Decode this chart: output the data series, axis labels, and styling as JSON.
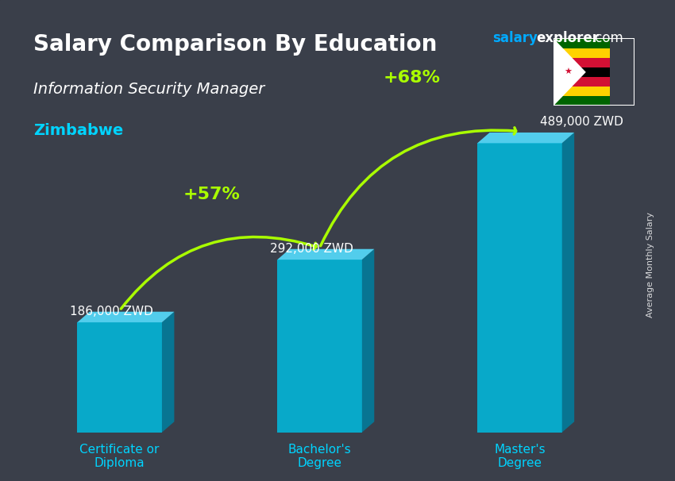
{
  "title": "Salary Comparison By Education",
  "subtitle": "Information Security Manager",
  "country": "Zimbabwe",
  "watermark": "salaryexplorer.com",
  "ylabel": "Average Monthly Salary",
  "categories": [
    "Certificate or\nDiploma",
    "Bachelor's\nDegree",
    "Master's\nDegree"
  ],
  "values": [
    186000,
    292000,
    489000
  ],
  "value_labels": [
    "186,000 ZWD",
    "292,000 ZWD",
    "489,000 ZWD"
  ],
  "pct_labels": [
    "+57%",
    "+68%"
  ],
  "bar_color_top": "#00c8f0",
  "bar_color_side": "#0099bb",
  "bar_color_face": "#00b0d8",
  "bg_color": "#1a1a2e",
  "title_color": "#ffffff",
  "subtitle_color": "#ffffff",
  "country_color": "#00d4ff",
  "category_color": "#00d4ff",
  "value_color": "#ffffff",
  "pct_color": "#aaff00",
  "arrow_color": "#44cc00",
  "watermark_salary_color": "#00aaff",
  "watermark_explorer_color": "#ffffff",
  "ylim": [
    0,
    580000
  ],
  "bar_width": 0.55,
  "bar_positions": [
    1,
    2.3,
    3.6
  ]
}
